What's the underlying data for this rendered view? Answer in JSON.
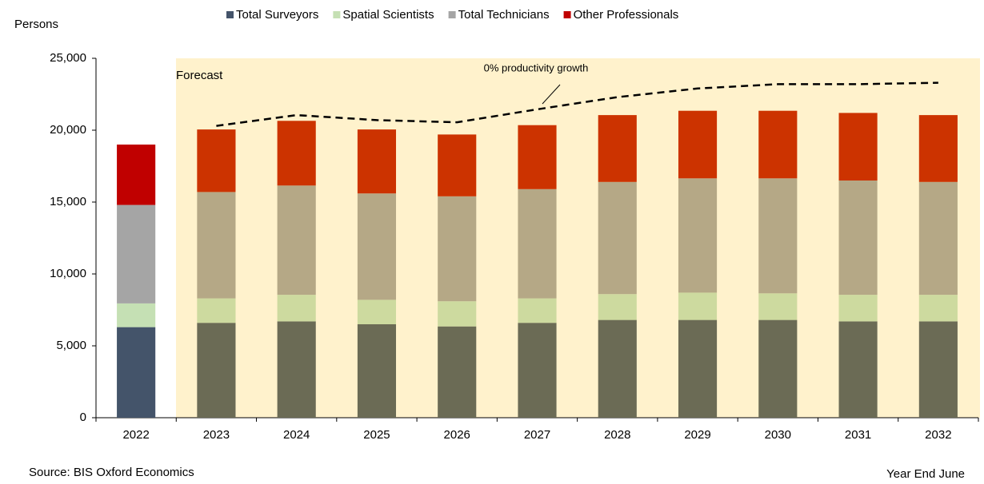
{
  "chart_data": {
    "type": "stacked_bar",
    "y_label": "Persons",
    "x_label": "Year End June",
    "source": "Source: BIS Oxford Economics",
    "annotation": "Forecast",
    "categories": [
      "2022",
      "2023",
      "2024",
      "2025",
      "2026",
      "2027",
      "2028",
      "2029",
      "2030",
      "2031",
      "2032"
    ],
    "series": [
      {
        "name": "Total Surveyors",
        "color": "#44546a",
        "colors": [
          "#44546a",
          "#6b6b55",
          "#6b6b55",
          "#6b6b55",
          "#6b6b55",
          "#6b6b55",
          "#6b6b55",
          "#6b6b55",
          "#6b6b55",
          "#6b6b55",
          "#6b6b55"
        ],
        "values": [
          6300,
          6600,
          6700,
          6500,
          6350,
          6600,
          6800,
          6800,
          6800,
          6700,
          6700
        ]
      },
      {
        "name": "Spatial Scientists",
        "color": "#c5e0b4",
        "colors": [
          "#c5e0b4",
          "#cdda9f",
          "#cdda9f",
          "#cdda9f",
          "#cdda9f",
          "#cdda9f",
          "#cdda9f",
          "#cdda9f",
          "#cdda9f",
          "#cdda9f",
          "#cdda9f"
        ],
        "values": [
          1650,
          1700,
          1850,
          1700,
          1750,
          1700,
          1800,
          1900,
          1850,
          1850,
          1850
        ]
      },
      {
        "name": "Total Technicians",
        "color": "#a5a5a5",
        "colors": [
          "#a5a5a5",
          "#b5a886",
          "#b5a886",
          "#b5a886",
          "#b5a886",
          "#b5a886",
          "#b5a886",
          "#b5a886",
          "#b5a886",
          "#b5a886",
          "#b5a886"
        ],
        "values": [
          6850,
          7400,
          7600,
          7400,
          7300,
          7600,
          7800,
          7950,
          8000,
          7950,
          7850
        ]
      },
      {
        "name": "Other Professionals",
        "color": "#c00000",
        "colors": [
          "#c00000",
          "#cc3300",
          "#cc3300",
          "#cc3300",
          "#cc3300",
          "#cc3300",
          "#cc3300",
          "#cc3300",
          "#cc3300",
          "#cc3300",
          "#cc3300"
        ],
        "values": [
          4200,
          4350,
          4500,
          4450,
          4300,
          4450,
          4650,
          4700,
          4700,
          4700,
          4650
        ]
      }
    ],
    "line": {
      "name": "0% productivity growth",
      "color": "#000000",
      "dashed": true,
      "values": [
        null,
        20300,
        21050,
        20700,
        20550,
        21450,
        22300,
        22900,
        23200,
        23200,
        23300
      ]
    },
    "ylim": [
      0,
      25000
    ],
    "yticks": [
      0,
      {
        "value": 5000,
        "label": "5,000"
      },
      {
        "value": 10000,
        "label": "10,000"
      },
      {
        "value": 15000,
        "label": "15,000"
      },
      {
        "value": 20000,
        "label": "20,000"
      },
      {
        "value": 25000,
        "label": "25,000"
      }
    ],
    "grid": false
  }
}
